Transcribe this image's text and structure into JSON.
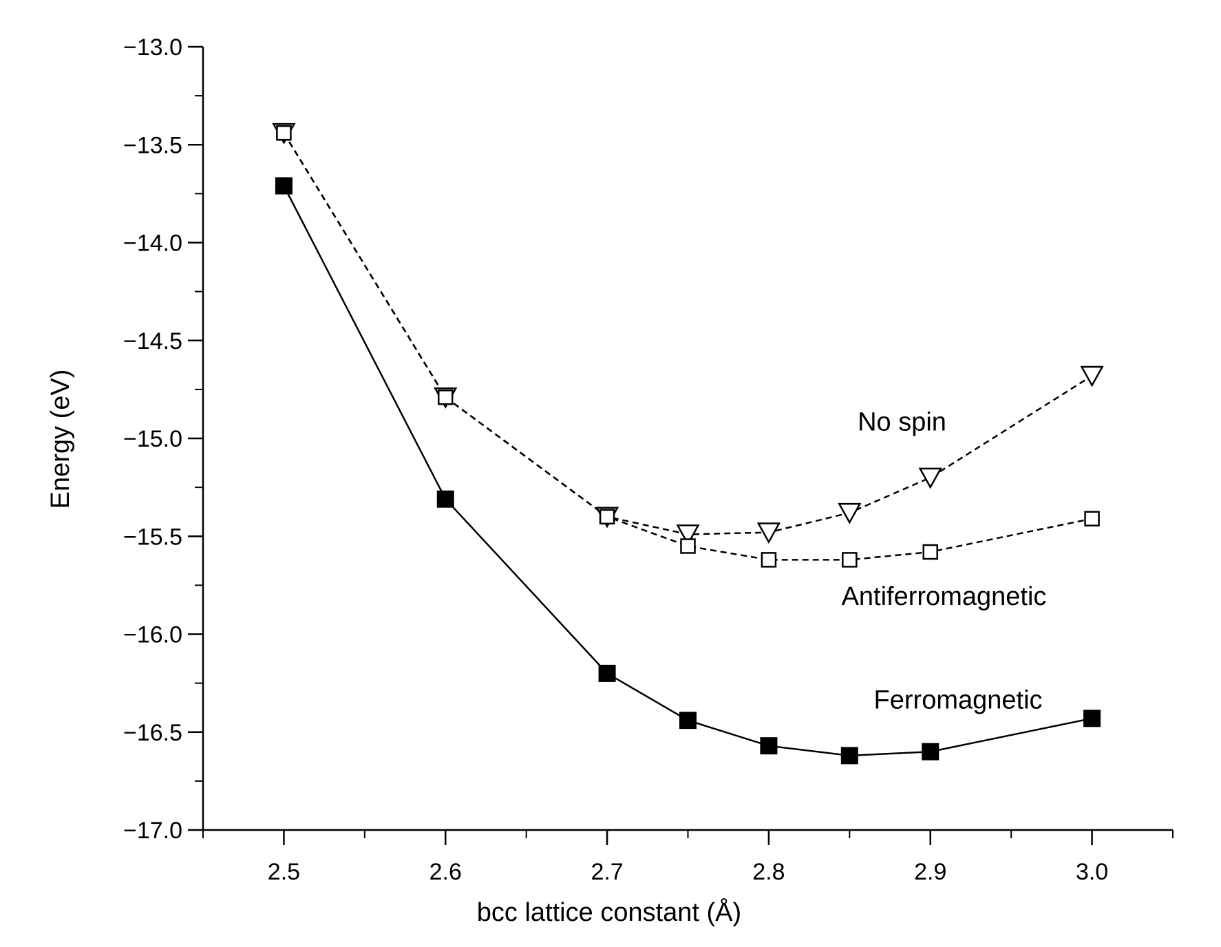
{
  "chart_data": {
    "type": "line",
    "title": "",
    "xlabel": "bcc lattice constant (Å)",
    "ylabel": "Energy (eV)",
    "xlim": [
      2.45,
      3.05
    ],
    "ylim": [
      -17.0,
      -13.0
    ],
    "x_ticks": [
      "2.5",
      "2.6",
      "2.7",
      "2.8",
      "2.9",
      "3.0"
    ],
    "y_ticks": [
      "−13.0",
      "−13.5",
      "−14.0",
      "−14.5",
      "−15.0",
      "−15.5",
      "−16.0",
      "−16.5",
      "−17.0"
    ],
    "grid": false,
    "legend": "none",
    "series": [
      {
        "name": "No spin",
        "marker": "open-triangle-down",
        "line_style": "dashed",
        "x": [
          2.5,
          2.6,
          2.7,
          2.75,
          2.8,
          2.85,
          2.9,
          3.0
        ],
        "y": [
          -13.44,
          -14.79,
          -15.4,
          -15.49,
          -15.48,
          -15.38,
          -15.2,
          -14.68
        ]
      },
      {
        "name": "Antiferromagnetic",
        "marker": "open-square",
        "line_style": "dashed",
        "x": [
          2.5,
          2.6,
          2.7,
          2.75,
          2.8,
          2.85,
          2.9,
          3.0
        ],
        "y": [
          -13.44,
          -14.79,
          -15.4,
          -15.55,
          -15.62,
          -15.62,
          -15.58,
          -15.41
        ]
      },
      {
        "name": "Ferromagnetic",
        "marker": "filled-square",
        "line_style": "solid",
        "x": [
          2.5,
          2.6,
          2.7,
          2.75,
          2.8,
          2.85,
          2.9,
          3.0
        ],
        "y": [
          -13.71,
          -15.31,
          -16.2,
          -16.44,
          -16.57,
          -16.62,
          -16.6,
          -16.43
        ]
      }
    ]
  }
}
